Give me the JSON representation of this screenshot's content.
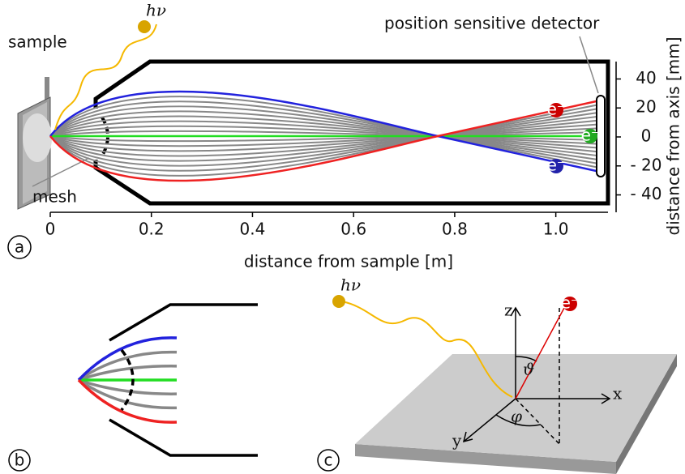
{
  "panel_a": {
    "label": "a",
    "photon": "hν",
    "sample": "sample",
    "detector": "position sensitive detector",
    "mesh": "mesh",
    "electrons": [
      "e⁻",
      "e⁻",
      "e⁻"
    ],
    "x_axis": {
      "label": "distance from sample [m]",
      "lim": [
        0,
        1.1
      ],
      "ticks": [
        0,
        0.2,
        0.4,
        0.6,
        0.8,
        {
          "value": 1,
          "label": "1.0"
        }
      ]
    },
    "y_axis": {
      "label": "distance from axis [mm]",
      "lim": [
        -52,
        52
      ],
      "ticks": [
        40,
        20,
        0,
        {
          "value": -20,
          "label": "- 20"
        },
        {
          "value": -40,
          "label": "- 40"
        }
      ]
    }
  },
  "panel_b": {
    "label": "b"
  },
  "panel_c": {
    "label": "c",
    "photon": "hν",
    "electron": "e⁻",
    "axes": {
      "z": "z",
      "x": "x",
      "y": "y"
    },
    "angles": [
      "ϑ",
      "φ"
    ]
  }
}
